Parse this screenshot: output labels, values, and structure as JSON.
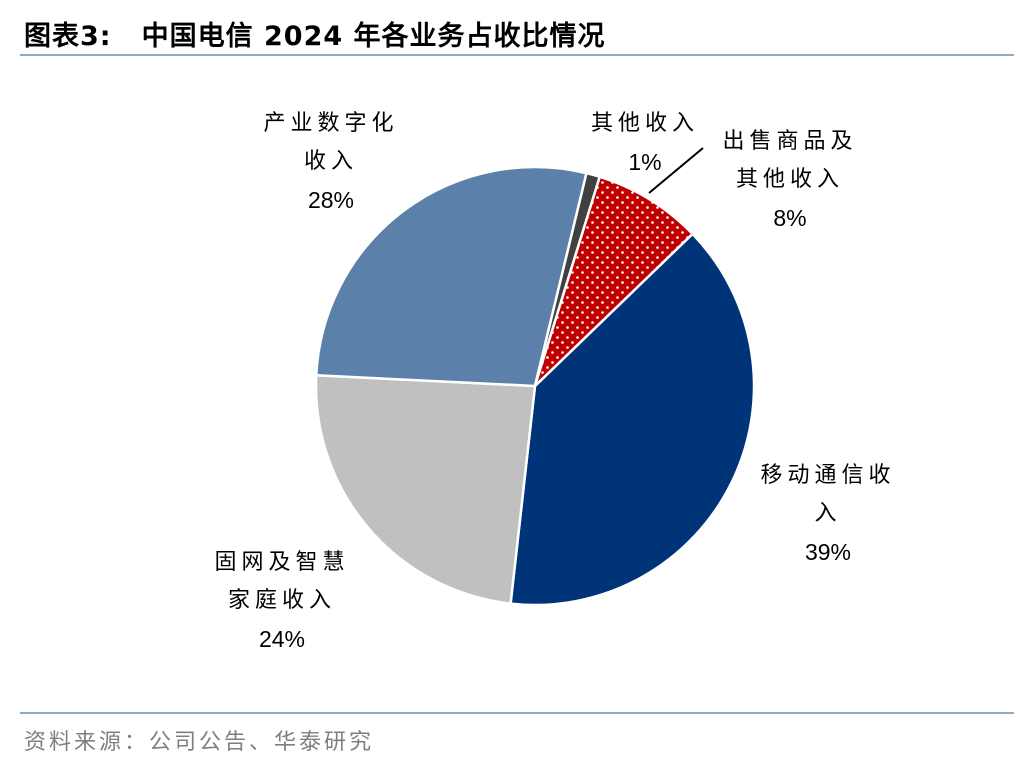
{
  "header": {
    "figure_no": "图表3:",
    "title": "中国电信 2024 年各业务占收比情况"
  },
  "footer": {
    "source": "资料来源：公司公告、华泰研究"
  },
  "chart_data": {
    "type": "pie",
    "title": "中国电信 2024 年各业务占收比情况",
    "start_angle_deg": 0,
    "direction": "clockwise",
    "slices": [
      {
        "key": "mobile",
        "label_lines": [
          "移动通信收",
          "入"
        ],
        "value": 39,
        "pct_label": "39%",
        "color": "#003478",
        "pattern": "solid"
      },
      {
        "key": "home",
        "label_lines": [
          "固网及智慧",
          "家庭收入"
        ],
        "value": 24,
        "pct_label": "24%",
        "color": "#c0c0c0",
        "pattern": "solid"
      },
      {
        "key": "digital",
        "label_lines": [
          "产业数字化",
          "收入"
        ],
        "value": 28,
        "pct_label": "28%",
        "color": "#5b80aa",
        "pattern": "solid"
      },
      {
        "key": "other",
        "label_lines": [
          "其他收入"
        ],
        "value": 1,
        "pct_label": "1%",
        "color": "#404040",
        "pattern": "solid"
      },
      {
        "key": "goods",
        "label_lines": [
          "出售商品及",
          "其他收入"
        ],
        "value": 8,
        "pct_label": "8%",
        "color": "#c00000",
        "pattern": "white-dots"
      }
    ]
  }
}
